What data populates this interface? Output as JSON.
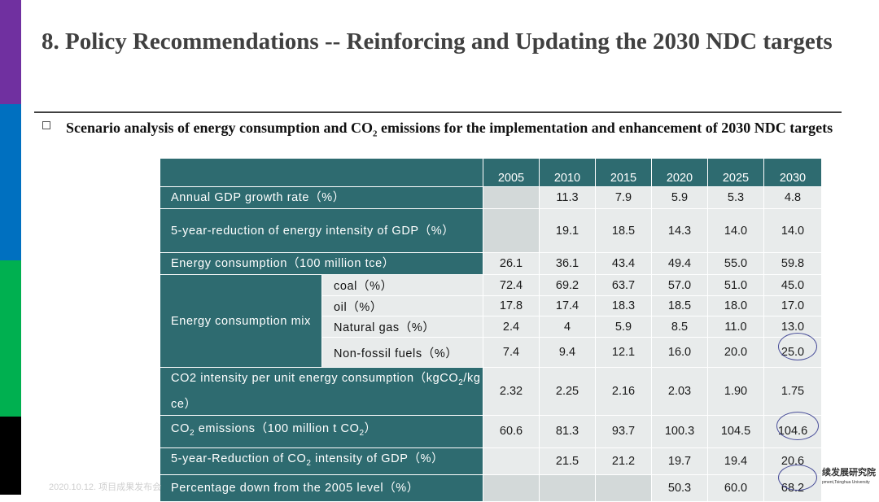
{
  "slide": {
    "title": "8. Policy Recommendations  -- Reinforcing and Updating the 2030 NDC targets",
    "subtitle_a": "Scenario analysis of energy consumption and CO",
    "subtitle_sub": "2",
    "subtitle_b": " emissions for the implementation and enhancement of 2030 NDC targets"
  },
  "table": {
    "years": [
      "2005",
      "2010",
      "2015",
      "2020",
      "2025",
      "2030"
    ],
    "rows": {
      "gdp": {
        "label": "Annual GDP growth rate（%）",
        "values": [
          "",
          "11.3",
          "7.9",
          "5.9",
          "5.3",
          "4.8"
        ]
      },
      "intensity": {
        "label": "5-year-reduction of energy intensity of GDP（%）",
        "values": [
          "",
          "19.1",
          "18.5",
          "14.3",
          "14.0",
          "14.0"
        ]
      },
      "energy": {
        "label": "Energy consumption（100 million tce）",
        "values": [
          "26.1",
          "36.1",
          "43.4",
          "49.4",
          "55.0",
          "59.8"
        ]
      },
      "mix": {
        "label": "Energy consumption mix",
        "coal": {
          "label": "coal（%）",
          "values": [
            "72.4",
            "69.2",
            "63.7",
            "57.0",
            "51.0",
            "45.0"
          ]
        },
        "oil": {
          "label": "oil（%）",
          "values": [
            "17.8",
            "17.4",
            "18.3",
            "18.5",
            "18.0",
            "17.0"
          ]
        },
        "gas": {
          "label": "Natural gas（%）",
          "values": [
            "2.4",
            "4",
            "5.9",
            "8.5",
            "11.0",
            "13.0"
          ]
        },
        "nonfossil": {
          "label": "Non-fossil fuels（%）",
          "values": [
            "7.4",
            "9.4",
            "12.1",
            "16.0",
            "20.0",
            "25.0"
          ]
        }
      },
      "co2int": {
        "label_a": "CO2 intensity per unit energy consumption（kgCO",
        "label_sub": "2",
        "label_b": "/kg ce）",
        "values": [
          "2.32",
          "2.25",
          "2.16",
          "2.03",
          "1.90",
          "1.75"
        ]
      },
      "co2": {
        "label_a": "CO",
        "label_sub1": "2",
        "label_b": " emissions（100 million t CO",
        "label_sub2": "2",
        "label_c": "）",
        "values": [
          "60.6",
          "81.3",
          "93.7",
          "100.3",
          "104.5",
          "104.6"
        ]
      },
      "co2red": {
        "label_a": "5-year-Reduction of CO",
        "label_sub": "2",
        "label_b": " intensity of GDP（%）",
        "values": [
          "",
          "21.5",
          "21.2",
          "19.7",
          "19.4",
          "20.6"
        ]
      },
      "pct": {
        "label": "Percentage down from the 2005 level（%）",
        "values": [
          "",
          "",
          "",
          "50.3",
          "60.0",
          "68.2"
        ]
      }
    }
  },
  "footer": {
    "left": "2020.10.12. 项目成果发布会",
    "right_a": "续发展研究院",
    "right_b": "pment,Tsinghua University"
  },
  "colors": {
    "header_teal": "#2e6b70",
    "cell_light": "#e8ebeb",
    "cell_alt": "#d3d9d9",
    "circle": "#4a4f9a"
  }
}
